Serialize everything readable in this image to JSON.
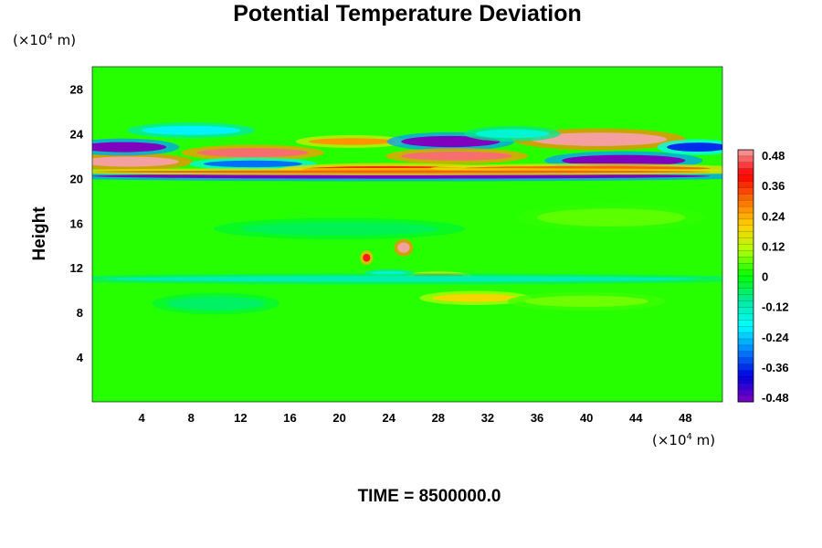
{
  "chart_data": {
    "type": "heatmap",
    "title": "Potential Temperature Deviation",
    "ylabel": "Height",
    "xlabel": "",
    "x_unit": {
      "prefix": "(×10",
      "exp": "4",
      "suffix": " m)"
    },
    "y_unit": {
      "prefix": "(×10",
      "exp": "4",
      "suffix": " m)"
    },
    "xlim": [
      0,
      51
    ],
    "ylim": [
      0,
      30
    ],
    "x_ticks": [
      "4",
      "8",
      "12",
      "16",
      "20",
      "24",
      "28",
      "32",
      "36",
      "40",
      "44",
      "48"
    ],
    "y_ticks": [
      "4",
      "8",
      "12",
      "16",
      "20",
      "24",
      "28"
    ],
    "colorbar": {
      "min": -0.48,
      "max": 0.48,
      "tick_labels": [
        "0.48",
        "0.36",
        "0.24",
        "0.12",
        "0",
        "-0.12",
        "-0.24",
        "-0.36",
        "-0.48"
      ],
      "colors": [
        "#f4a0a0",
        "#ff0000",
        "#ff7000",
        "#ffd000",
        "#b0ff00",
        "#00ff00",
        "#00e8a0",
        "#00ffff",
        "#0080ff",
        "#0000e0",
        "#8000c0"
      ]
    },
    "background_value": 0.02,
    "features": [
      {
        "x": 3,
        "y": 21.5,
        "dx": 4.0,
        "dy": 0.45,
        "value": 0.48
      },
      {
        "x": 2.5,
        "y": 22.8,
        "dx": 3.5,
        "dy": 0.45,
        "value": -0.48
      },
      {
        "x": 13,
        "y": 22.3,
        "dx": 4.5,
        "dy": 0.4,
        "value": 0.45
      },
      {
        "x": 13,
        "y": 21.3,
        "dx": 4.0,
        "dy": 0.3,
        "value": -0.3
      },
      {
        "x": 21,
        "y": 23.3,
        "dx": 3.5,
        "dy": 0.3,
        "value": 0.25
      },
      {
        "x": 24,
        "y": 20.8,
        "dx": 7.0,
        "dy": 0.3,
        "value": 0.35
      },
      {
        "x": 29,
        "y": 23.3,
        "dx": 4.0,
        "dy": 0.5,
        "value": -0.48
      },
      {
        "x": 29.5,
        "y": 22.0,
        "dx": 4.5,
        "dy": 0.4,
        "value": 0.45
      },
      {
        "x": 41,
        "y": 23.5,
        "dx": 5.5,
        "dy": 0.6,
        "value": 0.48
      },
      {
        "x": 43,
        "y": 21.6,
        "dx": 5.0,
        "dy": 0.5,
        "value": -0.48
      },
      {
        "x": 40,
        "y": 20.9,
        "dx": 10.0,
        "dy": 0.2,
        "value": 0.3
      },
      {
        "x": 25,
        "y": 20.2,
        "dx": 25.0,
        "dy": 0.22,
        "value": -0.48
      },
      {
        "x": 25,
        "y": 20.6,
        "dx": 25.0,
        "dy": 0.12,
        "value": 0.3
      },
      {
        "x": 49,
        "y": 22.8,
        "dx": 2.5,
        "dy": 0.4,
        "value": -0.35
      },
      {
        "x": 8,
        "y": 24.3,
        "dx": 4.0,
        "dy": 0.4,
        "value": -0.2
      },
      {
        "x": 34,
        "y": 24.0,
        "dx": 3.0,
        "dy": 0.4,
        "value": -0.15
      },
      {
        "x": 25.2,
        "y": 13.8,
        "dx": 0.5,
        "dy": 0.45,
        "value": 0.48
      },
      {
        "x": 22.2,
        "y": 12.9,
        "dx": 0.3,
        "dy": 0.35,
        "value": 0.4
      },
      {
        "x": 28,
        "y": 11.3,
        "dx": 2.0,
        "dy": 0.15,
        "value": 0.3
      },
      {
        "x": 24,
        "y": 11.5,
        "dx": 1.5,
        "dy": 0.15,
        "value": -0.2
      },
      {
        "x": 25,
        "y": 11.0,
        "dx": 24.0,
        "dy": 0.25,
        "value": -0.12
      },
      {
        "x": 31,
        "y": 9.3,
        "dx": 3.5,
        "dy": 0.35,
        "value": 0.18
      },
      {
        "x": 10,
        "y": 8.8,
        "dx": 4.0,
        "dy": 0.6,
        "value": -0.06
      },
      {
        "x": 40,
        "y": 9.0,
        "dx": 5.0,
        "dy": 0.5,
        "value": 0.06
      },
      {
        "x": 20,
        "y": 15.5,
        "dx": 8.0,
        "dy": 0.6,
        "value": -0.05
      },
      {
        "x": 42,
        "y": 16.5,
        "dx": 6.0,
        "dy": 0.8,
        "value": 0.05
      }
    ]
  },
  "footer": {
    "time_label": "TIME = 8500000.0"
  }
}
